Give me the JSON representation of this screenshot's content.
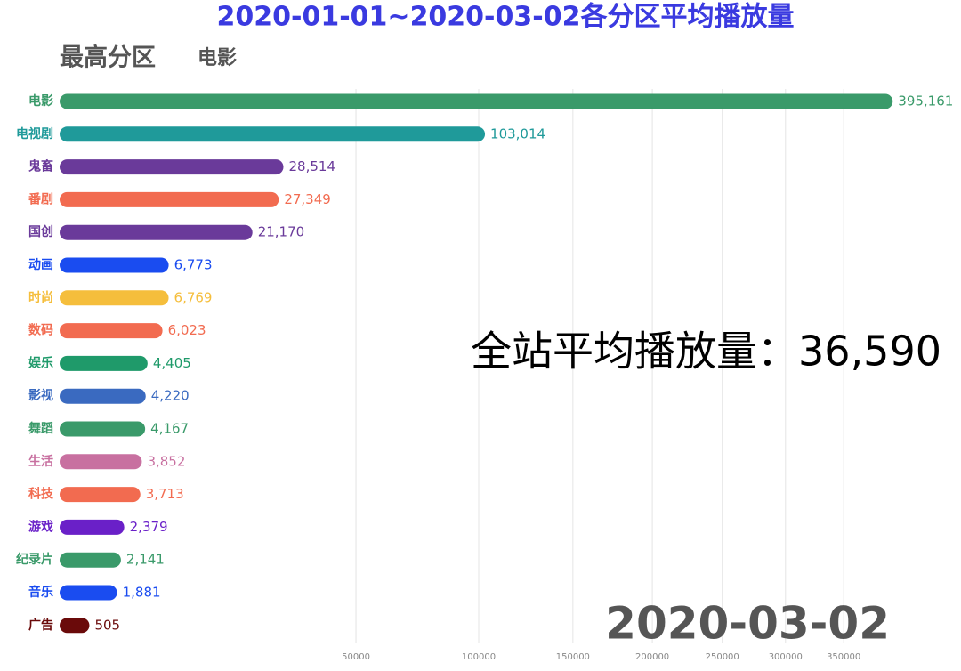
{
  "chart_data": {
    "type": "bar",
    "orientation": "horizontal",
    "xscale": "sqrt",
    "title": "2020-01-01~2020-03-02各分区平均播放量",
    "leader_label": "最高分区",
    "leader": "电影",
    "annotation": "全站平均播放量：36,590",
    "date": "2020-03-02",
    "categories": [
      "电影",
      "电视剧",
      "鬼畜",
      "番剧",
      "国创",
      "动画",
      "时尚",
      "数码",
      "娱乐",
      "影视",
      "舞蹈",
      "生活",
      "科技",
      "游戏",
      "纪录片",
      "音乐",
      "广告"
    ],
    "values": [
      395161,
      103014,
      28514,
      27349,
      21170,
      6773,
      6769,
      6023,
      4405,
      4220,
      4167,
      3852,
      3713,
      2379,
      2141,
      1881,
      505
    ],
    "value_labels": [
      "395,161",
      "103,014",
      "28,514",
      "27,349",
      "21,170",
      "6,773",
      "6,769",
      "6,023",
      "4,405",
      "4,220",
      "4,167",
      "3,852",
      "3,713",
      "2,379",
      "2,141",
      "1,881",
      "505"
    ],
    "colors": [
      "#3a9a6a",
      "#1f9a9a",
      "#6a3a9a",
      "#f26b50",
      "#6a3a9a",
      "#1a4cf0",
      "#f5be3c",
      "#f26b50",
      "#1f9a6a",
      "#3a6ac0",
      "#3a9a6a",
      "#c870a0",
      "#f26b50",
      "#6a20c8",
      "#3a9a6a",
      "#1a4cf0",
      "#6a0a0a"
    ],
    "xlim": [
      0,
      400000
    ],
    "xticks": [
      50000,
      100000,
      150000,
      200000,
      250000,
      300000,
      350000
    ],
    "grid": true
  }
}
